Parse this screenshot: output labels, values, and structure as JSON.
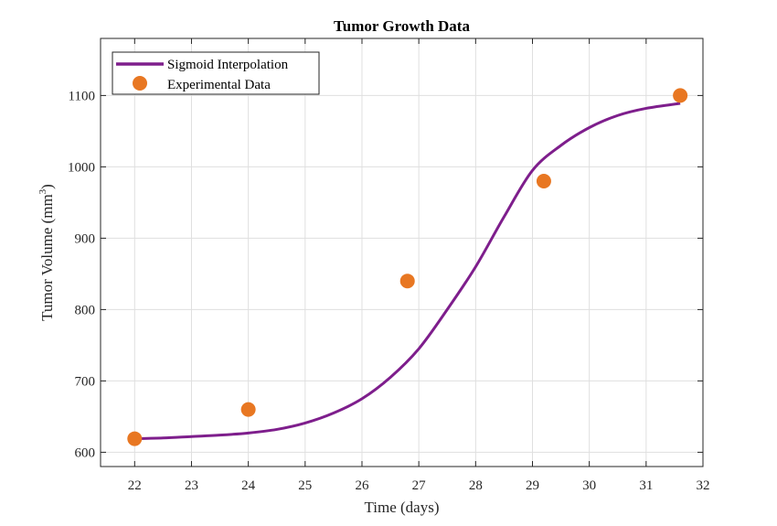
{
  "chart_data": {
    "type": "line",
    "title": "Tumor Growth Data",
    "xlabel": "Time (days)",
    "ylabel_prefix": "Tumor Volume (mm",
    "ylabel_superscript": "3",
    "ylabel_suffix": ")",
    "xlim": [
      21.4,
      32
    ],
    "ylim": [
      580,
      1180
    ],
    "xticks": [
      22,
      23,
      24,
      25,
      26,
      27,
      28,
      29,
      30,
      31,
      32
    ],
    "yticks": [
      600,
      700,
      800,
      900,
      1000,
      1100
    ],
    "grid": true,
    "legend_position": "top-left",
    "series": [
      {
        "name": "Sigmoid Interpolation",
        "kind": "line",
        "color": "#7E1E8C",
        "x": [
          22,
          22.5,
          23,
          23.5,
          24,
          24.5,
          25,
          25.5,
          26,
          26.5,
          27,
          27.5,
          28,
          28.5,
          29,
          29.5,
          30,
          30.5,
          31,
          31.6
        ],
        "y": [
          619,
          620,
          622,
          624,
          627,
          632,
          641,
          655,
          675,
          705,
          745,
          800,
          860,
          930,
          995,
          1030,
          1055,
          1072,
          1082,
          1089
        ]
      },
      {
        "name": "Experimental Data",
        "kind": "scatter",
        "color": "#E87722",
        "x": [
          22,
          24,
          26.8,
          29.2,
          31.6
        ],
        "y": [
          619,
          660,
          840,
          980,
          1100
        ]
      }
    ]
  }
}
